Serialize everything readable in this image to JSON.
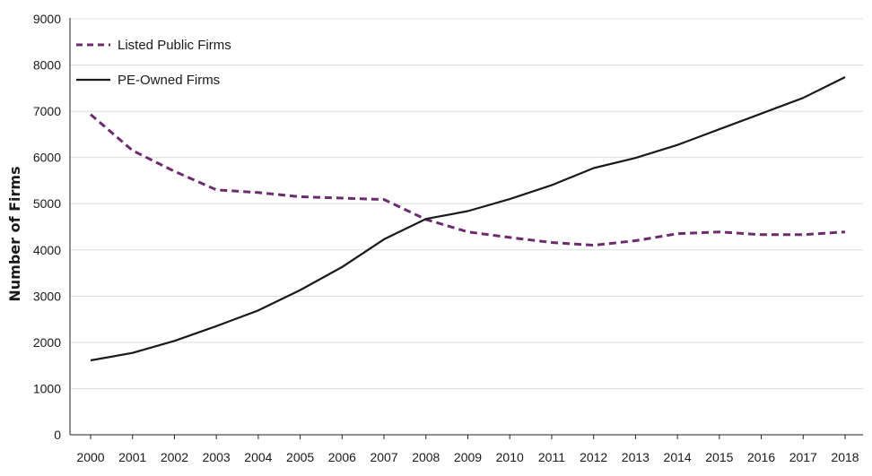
{
  "chart_data": {
    "type": "line",
    "title": "",
    "xlabel": "",
    "ylabel": "Number of Firms",
    "x": [
      "2000",
      "2001",
      "2002",
      "2003",
      "2004",
      "2005",
      "2006",
      "2007",
      "2008",
      "2009",
      "2010",
      "2011",
      "2012",
      "2013",
      "2014",
      "2015",
      "2016",
      "2017",
      "2018"
    ],
    "ylim": [
      0,
      9000
    ],
    "yticks": [
      0,
      1000,
      2000,
      3000,
      4000,
      5000,
      6000,
      7000,
      8000,
      9000
    ],
    "grid": true,
    "legend_position": "top-left",
    "series": [
      {
        "name": "Listed Public Firms",
        "style": "dashed",
        "color": "#6b2c6e",
        "values": [
          6930,
          6150,
          5700,
          5300,
          5240,
          5150,
          5120,
          5090,
          4660,
          4390,
          4270,
          4160,
          4100,
          4200,
          4350,
          4390,
          4330,
          4330,
          4390
        ]
      },
      {
        "name": "PE-Owned Firms",
        "style": "solid",
        "color": "#1a1a1a",
        "values": [
          1610,
          1770,
          2030,
          2350,
          2690,
          3130,
          3630,
          4230,
          4670,
          4840,
          5100,
          5400,
          5770,
          5990,
          6270,
          6610,
          6950,
          7290,
          7740
        ]
      }
    ]
  }
}
